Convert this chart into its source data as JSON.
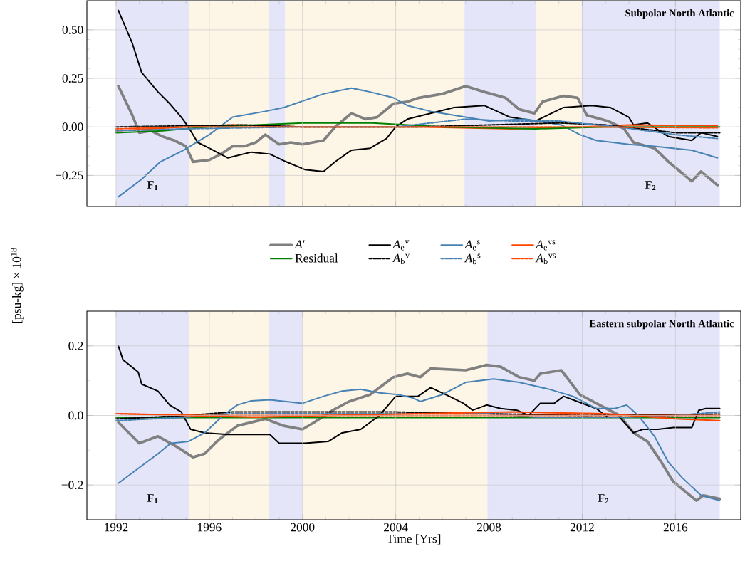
{
  "chart_data": [
    {
      "type": "line",
      "title": "Subpolar North Atlantic",
      "ylabel": "[psu-kg] × 10$^{18}$",
      "xlim": [
        1990.75,
        2018.8
      ],
      "ylim": [
        -0.41,
        0.65
      ],
      "xticks": [
        1992,
        1996,
        2000,
        2004,
        2008,
        2012,
        2016
      ],
      "yticks": [
        {
          "value": -0.25,
          "label": "−0.25"
        },
        {
          "value": 0,
          "label": "0.00"
        },
        {
          "value": 0.25,
          "label": "0.25"
        },
        {
          "value": 0.5,
          "label": "0.50"
        }
      ],
      "tick_labels": "y",
      "grid": true,
      "legend": "bottom",
      "bands": [
        {
          "axis": "x",
          "from": 1992,
          "to": 1995.15,
          "color": "#e5e5fa",
          "label": "F$_{1}$"
        },
        {
          "axis": "x",
          "from": 1995.15,
          "to": 1998.55,
          "color": "#fdf5e6"
        },
        {
          "axis": "x",
          "from": 1998.55,
          "to": 1999.25,
          "color": "#e5e5fa"
        },
        {
          "axis": "x",
          "from": 1999.25,
          "to": 2006.95,
          "color": "#fdf5e6"
        },
        {
          "axis": "x",
          "from": 2006.95,
          "to": 2010.0,
          "color": "#e5e5fa"
        },
        {
          "axis": "x",
          "from": 2010.0,
          "to": 2011.97,
          "color": "#fdf5e6"
        },
        {
          "axis": "x",
          "from": 2011.97,
          "to": 2017.9,
          "color": "#e5e5fa",
          "label": "F$_{2}$"
        }
      ],
      "series": [
        {
          "name": "*A*′",
          "color": "#808080",
          "line_style": "solid",
          "x": [
            1992.1,
            1992.7,
            1993.0,
            1993.5,
            1994.0,
            1994.5,
            1995.0,
            1995.3,
            1996.0,
            1996.5,
            1997.0,
            1997.5,
            1998.0,
            1998.4,
            1999.0,
            1999.5,
            2000.0,
            2000.9,
            2001.4,
            2002.1,
            2002.7,
            2003.2,
            2003.9,
            2004.5,
            2005.0,
            2006.0,
            2007.0,
            2007.8,
            2008.7,
            2009.3,
            2009.95,
            2010.3,
            2011.2,
            2011.8,
            2012.2,
            2013.1,
            2013.8,
            2014.2,
            2015.1,
            2015.7,
            2016.7,
            2017.1,
            2017.8
          ],
          "values": [
            0.21,
            0.06,
            -0.03,
            -0.02,
            -0.05,
            -0.07,
            -0.1,
            -0.18,
            -0.17,
            -0.14,
            -0.1,
            -0.1,
            -0.08,
            -0.04,
            -0.09,
            -0.08,
            -0.09,
            -0.07,
            0.0,
            0.07,
            0.04,
            0.05,
            0.12,
            0.13,
            0.15,
            0.17,
            0.21,
            0.18,
            0.15,
            0.09,
            0.07,
            0.13,
            0.16,
            0.15,
            0.06,
            0.03,
            -0.01,
            -0.08,
            -0.11,
            -0.18,
            -0.28,
            -0.23,
            -0.3
          ]
        },
        {
          "name": "Residual",
          "color": "#008000",
          "line_style": "solid",
          "x": [
            1992,
            1994,
            1996,
            2000,
            2003,
            2006,
            2010,
            2013,
            2017.9
          ],
          "values": [
            -0.03,
            -0.02,
            0.0,
            0.02,
            0.02,
            0.0,
            -0.01,
            0.0,
            0.0
          ]
        },
        {
          "name": "*A*$_{e}$$^{v}$",
          "color": "#000000",
          "line_style": "solid",
          "x": [
            1992.1,
            1992.7,
            1993.1,
            1993.8,
            1994.3,
            1994.8,
            1995.1,
            1995.5,
            1996.0,
            1996.8,
            1997.8,
            1998.6,
            1999.3,
            2000.1,
            2000.9,
            2001.4,
            2002.1,
            2002.9,
            2003.6,
            2004.0,
            2004.5,
            2005.5,
            2006.5,
            2007.8,
            2008.9,
            2010.0,
            2011.2,
            2012.4,
            2013.2,
            2014.0,
            2014.2,
            2014.8,
            2015.7,
            2016.7,
            2017.1,
            2017.8
          ],
          "values": [
            0.6,
            0.43,
            0.28,
            0.18,
            0.12,
            0.05,
            0.0,
            -0.08,
            -0.11,
            -0.16,
            -0.13,
            -0.14,
            -0.18,
            -0.22,
            -0.23,
            -0.18,
            -0.12,
            -0.11,
            -0.06,
            0.0,
            0.04,
            0.07,
            0.1,
            0.11,
            0.05,
            0.03,
            0.1,
            0.11,
            0.1,
            0.05,
            0.01,
            0.02,
            -0.05,
            -0.07,
            -0.03,
            -0.05
          ]
        },
        {
          "name": "*A*$_{b}$$^{v}$",
          "color": "#000000",
          "line_style": "dashed",
          "x": [
            1992,
            1997.5,
            2000,
            2005,
            2008,
            2011,
            2013,
            2016,
            2017.9
          ],
          "values": [
            0.0,
            0.01,
            0.0,
            0.0,
            0.01,
            0.02,
            0.01,
            -0.03,
            -0.03
          ]
        },
        {
          "name": "*A*$_{e}$$^{s}$",
          "color": "#4682b4",
          "line_style": "solid",
          "x": [
            1992.1,
            1993.1,
            1993.9,
            1994.9,
            1996.0,
            1997.0,
            1998.4,
            1999.2,
            2000.9,
            2002.1,
            2002.9,
            2003.9,
            2004.5,
            2005.5,
            2007.0,
            2008.0,
            2009.55,
            2011.1,
            2011.9,
            2012.6,
            2014.0,
            2015.1,
            2016.7,
            2017.8
          ],
          "values": [
            -0.36,
            -0.27,
            -0.18,
            -0.12,
            -0.04,
            0.05,
            0.08,
            0.1,
            0.17,
            0.2,
            0.18,
            0.15,
            0.11,
            0.08,
            0.05,
            0.03,
            0.04,
            0.01,
            -0.04,
            -0.07,
            -0.09,
            -0.1,
            -0.12,
            -0.16
          ]
        },
        {
          "name": "*A*$_{b}$$^{s}$",
          "color": "#4682b4",
          "line_style": "dashed",
          "x": [
            1992,
            1995,
            2000,
            2004,
            2007,
            2009,
            2011,
            2013.5,
            2016,
            2017.8
          ],
          "values": [
            -0.02,
            -0.01,
            0.0,
            0.0,
            0.04,
            0.03,
            0.03,
            0.0,
            -0.04,
            -0.06
          ]
        },
        {
          "name": "*A*$_{e}$$^{vs}$",
          "color": "#ff4500",
          "line_style": "solid",
          "x": [
            1992,
            1995,
            1997,
            2000,
            2005,
            2009,
            2012,
            2014,
            2017.8
          ],
          "values": [
            -0.02,
            0.0,
            0.01,
            0.0,
            0.0,
            -0.01,
            0.0,
            0.01,
            0.005
          ]
        },
        {
          "name": "*A*$_{b}$$^{vs}$",
          "color": "#ff4500",
          "line_style": "dashed",
          "x": [
            1992,
            1995,
            2005,
            2012,
            2017.8
          ],
          "values": [
            -0.01,
            0.0,
            0.0,
            0.0,
            -0.005
          ]
        }
      ]
    },
    {
      "type": "line",
      "title": "Eastern subpolar North Atlantic",
      "xlabel": "Time [Yrs]",
      "xlim": [
        1990.75,
        2018.8
      ],
      "ylim": [
        -0.3,
        0.3
      ],
      "xticks": [
        1992,
        1996,
        2000,
        2004,
        2008,
        2012,
        2016
      ],
      "yticks": [
        {
          "value": -0.2,
          "label": "−0.2"
        },
        {
          "value": 0,
          "label": "0.0"
        },
        {
          "value": 0.2,
          "label": "0.2"
        }
      ],
      "grid": true,
      "bands": [
        {
          "axis": "x",
          "from": 1992,
          "to": 1995.15,
          "color": "#e5e5fa",
          "label": "F$_{1}$"
        },
        {
          "axis": "x",
          "from": 1995.15,
          "to": 1998.55,
          "color": "#fdf5e6"
        },
        {
          "axis": "x",
          "from": 1998.55,
          "to": 2000.0,
          "color": "#e5e5fa"
        },
        {
          "axis": "x",
          "from": 2000.0,
          "to": 2007.93,
          "color": "#fdf5e6"
        },
        {
          "axis": "x",
          "from": 2007.93,
          "to": 2017.9,
          "color": "#e5e5fa",
          "label": "F$_{2}$"
        }
      ],
      "series": [
        {
          "color": "#808080",
          "line_style": "solid",
          "x": [
            1992.1,
            1993.0,
            1993.8,
            1994.6,
            1995.3,
            1995.8,
            1996.4,
            1997.2,
            1998.4,
            1999.2,
            2000.0,
            2000.5,
            2001.3,
            2002.0,
            2002.9,
            2003.9,
            2004.5,
            2005.05,
            2005.5,
            2007.0,
            2007.9,
            2008.5,
            2009.3,
            2009.95,
            2010.2,
            2011.1,
            2011.9,
            2012.6,
            2013.6,
            2014.2,
            2014.8,
            2015.4,
            2015.9,
            2016.9,
            2017.2,
            2017.9
          ],
          "values": [
            -0.02,
            -0.08,
            -0.06,
            -0.09,
            -0.12,
            -0.11,
            -0.07,
            -0.03,
            -0.01,
            -0.03,
            -0.04,
            -0.02,
            0.015,
            0.04,
            0.06,
            0.11,
            0.12,
            0.11,
            0.135,
            0.13,
            0.145,
            0.14,
            0.11,
            0.1,
            0.12,
            0.13,
            0.06,
            0.035,
            0.0,
            -0.05,
            -0.075,
            -0.135,
            -0.19,
            -0.245,
            -0.23,
            -0.24
          ]
        },
        {
          "color": "#008000",
          "line_style": "solid",
          "x": [
            1992,
            2000,
            2008,
            2017.9
          ],
          "values": [
            -0.006,
            -0.006,
            -0.006,
            -0.006
          ]
        },
        {
          "color": "#000000",
          "line_style": "solid",
          "x": [
            1992.1,
            1992.3,
            1992.95,
            1993.1,
            1993.8,
            1994.3,
            1994.8,
            1995.2,
            1995.8,
            1996.8,
            1997.8,
            1998.6,
            1999.0,
            2000.1,
            2001.1,
            2001.7,
            2002.5,
            2003.3,
            2004.0,
            2004.95,
            2005.5,
            2006.3,
            2006.9,
            2007.3,
            2007.9,
            2008.5,
            2009.2,
            2009.7,
            2010.2,
            2010.8,
            2011.2,
            2011.8,
            2012.6,
            2013.1,
            2013.6,
            2014.2,
            2014.6,
            2015.25,
            2015.9,
            2016.7,
            2017.0,
            2017.3,
            2017.9
          ],
          "values": [
            0.2,
            0.16,
            0.125,
            0.09,
            0.07,
            0.03,
            0.01,
            -0.04,
            -0.05,
            -0.055,
            -0.055,
            -0.055,
            -0.08,
            -0.08,
            -0.075,
            -0.05,
            -0.04,
            0.0,
            0.055,
            0.055,
            0.08,
            0.055,
            0.035,
            0.015,
            0.03,
            0.02,
            0.015,
            0.0,
            0.035,
            0.035,
            0.055,
            0.04,
            0.02,
            -0.005,
            -0.005,
            -0.05,
            -0.04,
            -0.04,
            -0.035,
            -0.035,
            0.015,
            0.02,
            0.02
          ]
        },
        {
          "color": "#000000",
          "line_style": "dashed",
          "x": [
            1992,
            1995,
            1997,
            2000,
            2004,
            2008,
            2012,
            2017.9
          ],
          "values": [
            -0.01,
            0.0,
            0.01,
            0.01,
            0.01,
            0.005,
            0.0,
            0.004
          ]
        },
        {
          "color": "#4682b4",
          "line_style": "solid",
          "x": [
            1992.1,
            1992.9,
            1993.8,
            1994.35,
            1995.1,
            1995.8,
            1996.6,
            1997.2,
            1997.8,
            1998.6,
            2000.0,
            2000.9,
            2001.7,
            2002.5,
            2003.3,
            2004.1,
            2004.75,
            2005.05,
            2006.0,
            2007.0,
            2008.2,
            2009.3,
            2010.6,
            2011.6,
            2012.6,
            2013.4,
            2013.9,
            2014.4,
            2015.1,
            2015.7,
            2016.3,
            2017.1,
            2017.9
          ],
          "values": [
            -0.195,
            -0.155,
            -0.11,
            -0.08,
            -0.075,
            -0.05,
            0.0,
            0.03,
            0.042,
            0.045,
            0.035,
            0.055,
            0.07,
            0.075,
            0.065,
            0.06,
            0.05,
            0.04,
            0.06,
            0.095,
            0.105,
            0.095,
            0.075,
            0.055,
            0.02,
            0.02,
            0.03,
            0.0,
            -0.06,
            -0.135,
            -0.18,
            -0.23,
            -0.245
          ]
        },
        {
          "color": "#4682b4",
          "line_style": "dashed",
          "x": [
            1992,
            1995,
            1997,
            2000,
            2004,
            2008,
            2010,
            2014,
            2016,
            2017.9
          ],
          "values": [
            -0.015,
            -0.005,
            0.005,
            0.005,
            0.005,
            0.005,
            -0.005,
            -0.005,
            0.0,
            0.01
          ]
        },
        {
          "color": "#ff4500",
          "line_style": "solid",
          "x": [
            1992,
            1995,
            1998,
            2001,
            2005,
            2009,
            2013,
            2016,
            2017.9
          ],
          "values": [
            0.005,
            0.0,
            -0.005,
            0.0,
            0.005,
            0.01,
            0.005,
            -0.01,
            -0.015
          ]
        },
        {
          "color": "#ff4500",
          "line_style": "dashed",
          "x": [
            1992,
            1996,
            2005,
            2017.9
          ],
          "values": [
            0.005,
            0.0,
            0.0,
            0.0
          ]
        }
      ]
    }
  ]
}
